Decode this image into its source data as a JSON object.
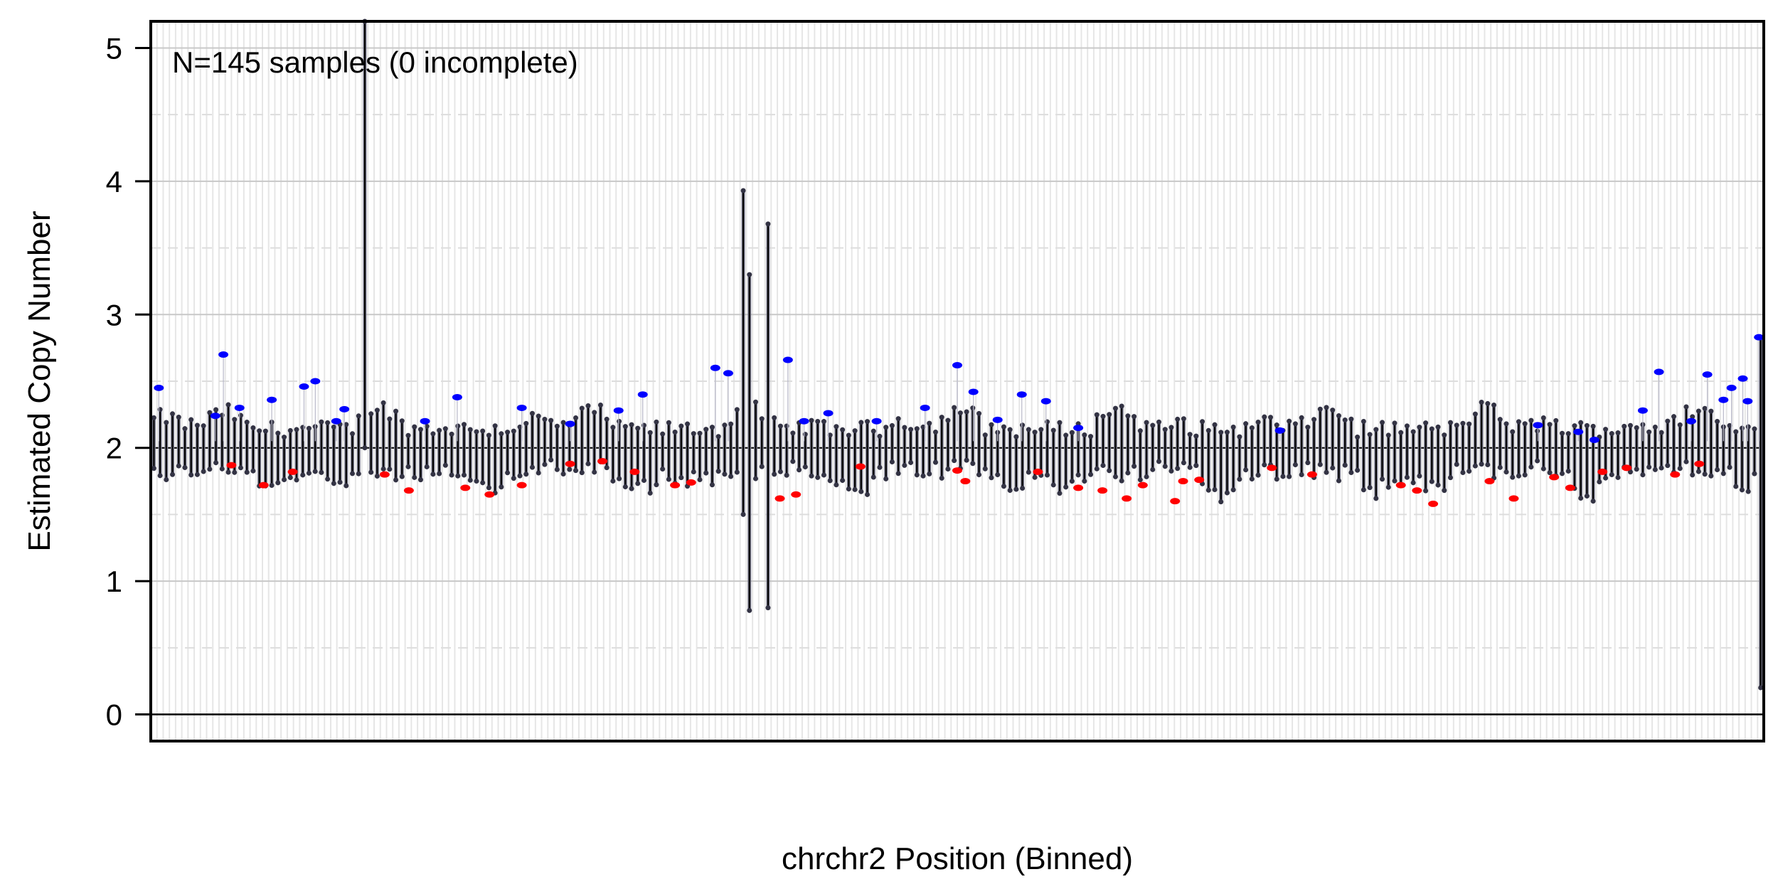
{
  "chart_data": {
    "type": "scatter",
    "title": "",
    "annotation": "N=145 samples (0 incomplete)",
    "xlabel": "chrchr2 Position (Binned)",
    "ylabel": "Estimated Copy Number",
    "ylim": [
      -0.2,
      5.2
    ],
    "yticks": [
      "0",
      "1",
      "2",
      "3",
      "4",
      "5"
    ],
    "x_ticks_shown": false,
    "grid": true,
    "n_bins": 260,
    "reference_line_y": 2,
    "series": [
      {
        "name": "",
        "color": "#000000",
        "role": "per-bin sample range (black)"
      },
      {
        "name": "",
        "color": "#7a7a8c",
        "role": "per-bin sample points (grey)"
      },
      {
        "name": "",
        "color": "#0000ff",
        "role": "gain outliers"
      },
      {
        "name": "",
        "color": "#ff0000",
        "role": "loss outliers"
      }
    ],
    "features": [
      {
        "bin_fraction": 0.132,
        "min": 2.0,
        "max": 5.2
      },
      {
        "bin_fraction": 0.366,
        "min": 1.5,
        "max": 3.93
      },
      {
        "bin_fraction": 0.37,
        "min": 0.78,
        "max": 3.3
      },
      {
        "bin_fraction": 0.38,
        "min": 0.8,
        "max": 3.68
      },
      {
        "bin_fraction": 0.995,
        "min": 0.2,
        "max": 2.83
      }
    ],
    "gain_points": [
      [
        0.005,
        2.45
      ],
      [
        0.04,
        2.24
      ],
      [
        0.045,
        2.7
      ],
      [
        0.055,
        2.3
      ],
      [
        0.075,
        2.36
      ],
      [
        0.095,
        2.46
      ],
      [
        0.102,
        2.5
      ],
      [
        0.115,
        2.2
      ],
      [
        0.12,
        2.29
      ],
      [
        0.17,
        2.2
      ],
      [
        0.19,
        2.38
      ],
      [
        0.23,
        2.3
      ],
      [
        0.26,
        2.18
      ],
      [
        0.29,
        2.28
      ],
      [
        0.305,
        2.4
      ],
      [
        0.35,
        2.6
      ],
      [
        0.358,
        2.56
      ],
      [
        0.395,
        2.66
      ],
      [
        0.405,
        2.2
      ],
      [
        0.42,
        2.26
      ],
      [
        0.45,
        2.2
      ],
      [
        0.48,
        2.3
      ],
      [
        0.5,
        2.62
      ],
      [
        0.51,
        2.42
      ],
      [
        0.525,
        2.21
      ],
      [
        0.54,
        2.4
      ],
      [
        0.555,
        2.35
      ],
      [
        0.575,
        2.15
      ],
      [
        0.7,
        2.13
      ],
      [
        0.86,
        2.17
      ],
      [
        0.885,
        2.12
      ],
      [
        0.895,
        2.06
      ],
      [
        0.925,
        2.28
      ],
      [
        0.935,
        2.57
      ],
      [
        0.955,
        2.2
      ],
      [
        0.965,
        2.55
      ],
      [
        0.975,
        2.36
      ],
      [
        0.98,
        2.45
      ],
      [
        0.987,
        2.52
      ],
      [
        0.99,
        2.35
      ],
      [
        0.997,
        2.83
      ]
    ],
    "loss_points": [
      [
        0.05,
        1.87
      ],
      [
        0.07,
        1.72
      ],
      [
        0.088,
        1.82
      ],
      [
        0.145,
        1.8
      ],
      [
        0.16,
        1.68
      ],
      [
        0.195,
        1.7
      ],
      [
        0.21,
        1.65
      ],
      [
        0.23,
        1.72
      ],
      [
        0.26,
        1.88
      ],
      [
        0.28,
        1.9
      ],
      [
        0.3,
        1.82
      ],
      [
        0.325,
        1.72
      ],
      [
        0.335,
        1.74
      ],
      [
        0.39,
        1.62
      ],
      [
        0.4,
        1.65
      ],
      [
        0.44,
        1.86
      ],
      [
        0.5,
        1.83
      ],
      [
        0.505,
        1.75
      ],
      [
        0.55,
        1.82
      ],
      [
        0.575,
        1.7
      ],
      [
        0.59,
        1.68
      ],
      [
        0.605,
        1.62
      ],
      [
        0.615,
        1.72
      ],
      [
        0.635,
        1.6
      ],
      [
        0.64,
        1.75
      ],
      [
        0.65,
        1.76
      ],
      [
        0.695,
        1.85
      ],
      [
        0.72,
        1.8
      ],
      [
        0.775,
        1.72
      ],
      [
        0.785,
        1.68
      ],
      [
        0.795,
        1.58
      ],
      [
        0.83,
        1.75
      ],
      [
        0.845,
        1.62
      ],
      [
        0.87,
        1.78
      ],
      [
        0.88,
        1.7
      ],
      [
        0.9,
        1.82
      ],
      [
        0.915,
        1.85
      ],
      [
        0.945,
        1.8
      ],
      [
        0.96,
        1.88
      ]
    ]
  }
}
